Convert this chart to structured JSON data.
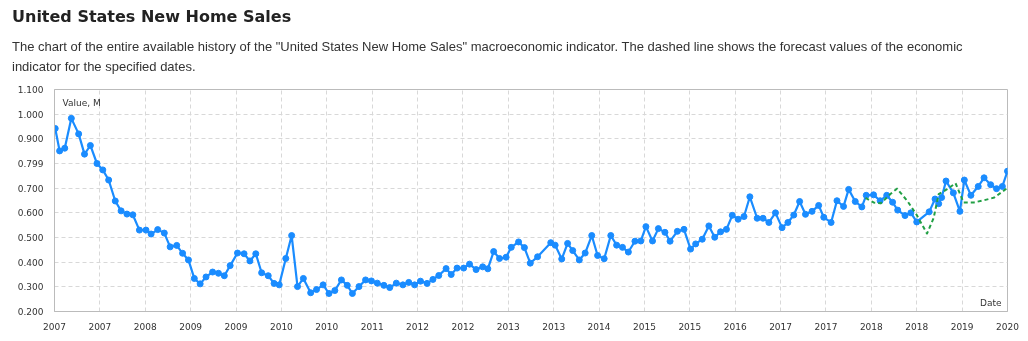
{
  "chart_data": {
    "type": "line",
    "title": "United States New Home Sales",
    "subtitle": "The chart of the entire available history of the \"United States New Home Sales\" macroeconomic indicator. The dashed line shows the forecast values of the economic indicator for the specified dates.",
    "xlabel": "Date",
    "ylabel": "Value, M",
    "xlim": [
      2006.66,
      2019.68
    ],
    "ylim": [
      0.2,
      1.1
    ],
    "xticks": [
      {
        "value": 2006.66,
        "label": "2007"
      },
      {
        "value": 2007.28,
        "label": "2007"
      },
      {
        "value": 2007.9,
        "label": "2008"
      },
      {
        "value": 2008.52,
        "label": "2009"
      },
      {
        "value": 2009.14,
        "label": "2009"
      },
      {
        "value": 2009.76,
        "label": "2010"
      },
      {
        "value": 2010.38,
        "label": "2010"
      },
      {
        "value": 2011.0,
        "label": "2011"
      },
      {
        "value": 2011.62,
        "label": "2012"
      },
      {
        "value": 2012.24,
        "label": "2012"
      },
      {
        "value": 2012.86,
        "label": "2013"
      },
      {
        "value": 2013.48,
        "label": "2013"
      },
      {
        "value": 2014.1,
        "label": "2014"
      },
      {
        "value": 2014.72,
        "label": "2015"
      },
      {
        "value": 2015.34,
        "label": "2015"
      },
      {
        "value": 2015.96,
        "label": "2016"
      },
      {
        "value": 2016.58,
        "label": "2017"
      },
      {
        "value": 2017.2,
        "label": "2017"
      },
      {
        "value": 2017.82,
        "label": "2018"
      },
      {
        "value": 2018.44,
        "label": "2018"
      },
      {
        "value": 2019.06,
        "label": "2019"
      },
      {
        "value": 2019.68,
        "label": "2020"
      }
    ],
    "yticks": [
      {
        "value": 0.2,
        "label": "0.200"
      },
      {
        "value": 0.3,
        "label": "0.300"
      },
      {
        "value": 0.4,
        "label": "0.400"
      },
      {
        "value": 0.5,
        "label": "0.500"
      },
      {
        "value": 0.6,
        "label": "0.600"
      },
      {
        "value": 0.7,
        "label": "0.700"
      },
      {
        "value": 0.799,
        "label": "0.799"
      },
      {
        "value": 0.9,
        "label": "0.900"
      },
      {
        "value": 1.0,
        "label": "1.000"
      },
      {
        "value": 1.1,
        "label": "1.100"
      }
    ],
    "grid": true,
    "series": [
      {
        "color": "#1a8cff",
        "marker": "circle",
        "line_style": "solid",
        "x": [
          2006.67,
          2006.73,
          2006.8,
          2006.89,
          2006.99,
          2007.07,
          2007.15,
          2007.24,
          2007.32,
          2007.4,
          2007.49,
          2007.57,
          2007.65,
          2007.73,
          2007.82,
          2007.91,
          2007.98,
          2008.07,
          2008.16,
          2008.24,
          2008.33,
          2008.41,
          2008.49,
          2008.57,
          2008.65,
          2008.73,
          2008.82,
          2008.9,
          2008.98,
          2009.06,
          2009.16,
          2009.25,
          2009.33,
          2009.41,
          2009.49,
          2009.58,
          2009.66,
          2009.73,
          2009.82,
          2009.9,
          2009.98,
          2010.06,
          2010.16,
          2010.24,
          2010.33,
          2010.41,
          2010.49,
          2010.58,
          2010.66,
          2010.73,
          2010.82,
          2010.91,
          2010.99,
          2011.07,
          2011.16,
          2011.24,
          2011.33,
          2011.42,
          2011.5,
          2011.58,
          2011.66,
          2011.75,
          2011.83,
          2011.91,
          2012.01,
          2012.08,
          2012.16,
          2012.25,
          2012.33,
          2012.42,
          2012.51,
          2012.58,
          2012.66,
          2012.74,
          2012.83,
          2012.9,
          2013.0,
          2013.08,
          2013.16,
          2013.26,
          2013.44,
          2013.5,
          2013.59,
          2013.67,
          2013.74,
          2013.83,
          2013.91,
          2014.0,
          2014.08,
          2014.17,
          2014.26,
          2014.34,
          2014.42,
          2014.5,
          2014.59,
          2014.67,
          2014.74,
          2014.83,
          2014.91,
          2015.0,
          2015.07,
          2015.17,
          2015.26,
          2015.35,
          2015.42,
          2015.51,
          2015.6,
          2015.68,
          2015.76,
          2015.84,
          2015.92,
          2016.0,
          2016.08,
          2016.16,
          2016.26,
          2016.34,
          2016.42,
          2016.51,
          2016.6,
          2016.68,
          2016.76,
          2016.84,
          2016.92,
          2017.01,
          2017.1,
          2017.17,
          2017.27,
          2017.35,
          2017.44,
          2017.51,
          2017.6,
          2017.69,
          2017.75,
          2017.85,
          2017.94,
          2018.03,
          2018.11,
          2018.18,
          2018.28,
          2018.36,
          2018.44,
          2018.61,
          2018.69,
          2018.74,
          2018.78,
          2018.84,
          2018.94,
          2019.03,
          2019.09,
          2019.18,
          2019.28,
          2019.36,
          2019.45,
          2019.53,
          2019.61,
          2019.68
        ],
        "values": [
          0.942,
          0.851,
          0.862,
          0.983,
          0.92,
          0.838,
          0.873,
          0.8,
          0.774,
          0.733,
          0.648,
          0.608,
          0.595,
          0.592,
          0.53,
          0.53,
          0.514,
          0.532,
          0.518,
          0.462,
          0.468,
          0.436,
          0.409,
          0.334,
          0.312,
          0.34,
          0.36,
          0.355,
          0.345,
          0.386,
          0.437,
          0.434,
          0.405,
          0.434,
          0.357,
          0.345,
          0.314,
          0.308,
          0.415,
          0.508,
          0.301,
          0.334,
          0.276,
          0.289,
          0.308,
          0.273,
          0.285,
          0.328,
          0.306,
          0.273,
          0.301,
          0.328,
          0.324,
          0.315,
          0.306,
          0.297,
          0.315,
          0.308,
          0.318,
          0.308,
          0.323,
          0.314,
          0.33,
          0.346,
          0.374,
          0.35,
          0.376,
          0.376,
          0.392,
          0.37,
          0.381,
          0.373,
          0.443,
          0.415,
          0.42,
          0.46,
          0.482,
          0.459,
          0.396,
          0.422,
          0.479,
          0.469,
          0.413,
          0.476,
          0.447,
          0.409,
          0.437,
          0.508,
          0.427,
          0.414,
          0.508,
          0.469,
          0.46,
          0.441,
          0.485,
          0.486,
          0.544,
          0.486,
          0.536,
          0.521,
          0.485,
          0.525,
          0.533,
          0.453,
          0.474,
          0.493,
          0.547,
          0.501,
          0.523,
          0.533,
          0.59,
          0.574,
          0.585,
          0.665,
          0.578,
          0.578,
          0.561,
          0.6,
          0.54,
          0.561,
          0.591,
          0.646,
          0.594,
          0.606,
          0.63,
          0.582,
          0.561,
          0.649,
          0.626,
          0.695,
          0.646,
          0.624,
          0.671,
          0.673,
          0.649,
          0.671,
          0.643,
          0.611,
          0.589,
          0.6,
          0.563,
          0.604,
          0.656,
          0.637,
          0.662,
          0.729,
          0.681,
          0.606,
          0.733,
          0.671,
          0.707,
          0.742,
          0.714,
          0.698,
          0.707,
          0.769
        ]
      },
      {
        "color": "#22a045",
        "marker": "none",
        "line_style": "dashed",
        "x": [
          2017.74,
          2017.85,
          2017.95,
          2018.08,
          2018.17,
          2018.31,
          2018.44,
          2018.58,
          2018.67,
          2018.74,
          2018.85,
          2018.97,
          2019.08,
          2019.22,
          2019.36,
          2019.5,
          2019.68
        ],
        "values": [
          0.661,
          0.642,
          0.639,
          0.676,
          0.698,
          0.649,
          0.591,
          0.516,
          0.578,
          0.676,
          0.695,
          0.72,
          0.642,
          0.642,
          0.651,
          0.662,
          0.701
        ]
      }
    ]
  }
}
